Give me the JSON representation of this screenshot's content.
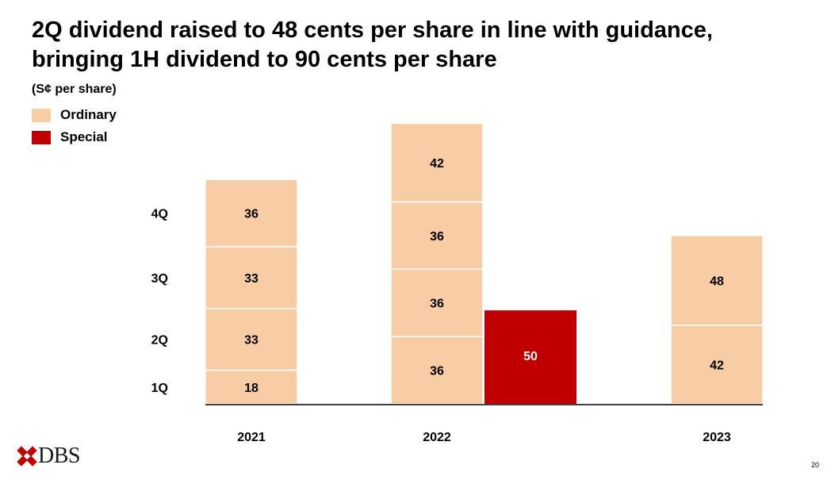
{
  "title_line1": "2Q dividend raised to 48 cents per share in line with guidance,",
  "title_line2": "bringing 1H dividend to 90 cents per share",
  "unit_label": "(S¢ per share)",
  "logo_text": "DBS",
  "page_number": "20",
  "colors": {
    "ordinary": "#f8cca4",
    "special": "#c00000"
  },
  "chart_data": {
    "type": "bar",
    "stacked": true,
    "categories": [
      "2021",
      "2022",
      "2023"
    ],
    "quarter_labels": [
      "1Q",
      "2Q",
      "3Q",
      "4Q"
    ],
    "series": [
      {
        "name": "Ordinary",
        "stacks": [
          [
            18,
            33,
            33,
            36
          ],
          [
            36,
            36,
            36,
            42
          ],
          [
            42,
            48
          ]
        ]
      },
      {
        "name": "Special",
        "stacks": [
          [],
          [
            50
          ],
          []
        ]
      }
    ],
    "legend": [
      "Ordinary",
      "Special"
    ],
    "legend_position": "top-left",
    "grid": false
  }
}
